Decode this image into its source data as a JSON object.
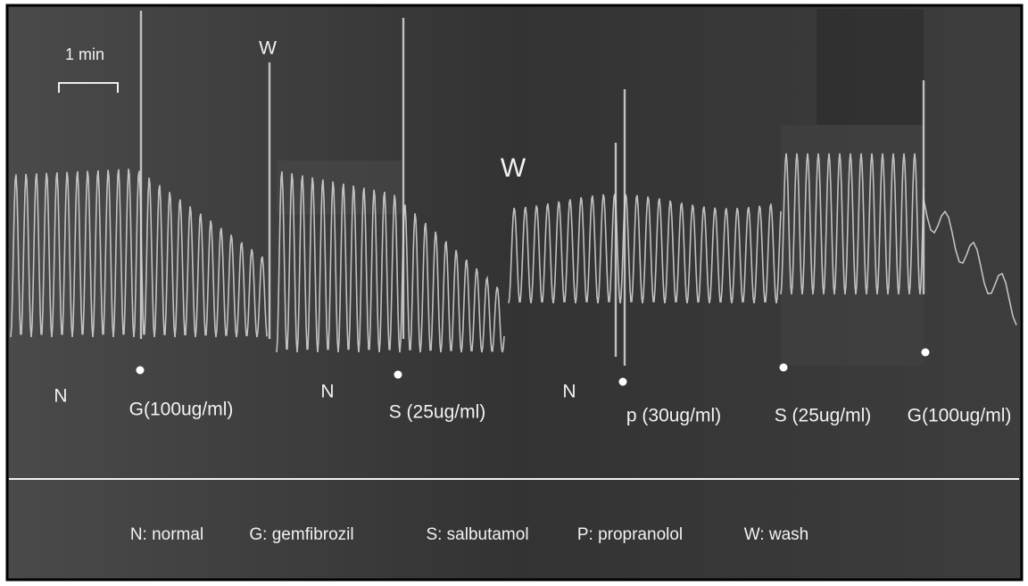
{
  "scale_bar": "1 min",
  "wash_markers": [
    "W",
    "W"
  ],
  "annotations": [
    "N",
    "G(100ug/ml)",
    "N",
    "S (25ug/ml)",
    "N",
    "p (30ug/ml)",
    "S (25ug/ml)",
    "G(100ug/ml)"
  ],
  "legend": [
    "N: normal",
    "G: gemfibrozil",
    "S: salbutamol",
    "P: propranolol",
    "W: wash"
  ]
}
